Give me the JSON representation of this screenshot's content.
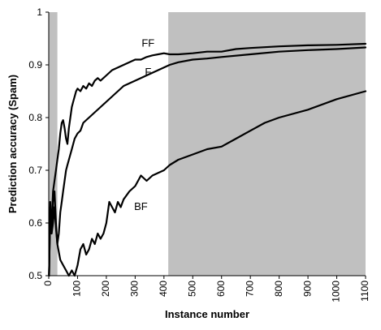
{
  "chart_data": {
    "type": "line",
    "xlabel": "Instance number",
    "ylabel": "Prediction accuracy (Spam)",
    "xlim": [
      0,
      1100
    ],
    "ylim": [
      0.5,
      1
    ],
    "x_ticks": [
      0,
      100,
      200,
      300,
      400,
      500,
      600,
      700,
      800,
      900,
      1000,
      1100
    ],
    "y_ticks": [
      0.5,
      0.6,
      0.7,
      0.8,
      0.9,
      1
    ],
    "y_tick_labels": [
      "0.5",
      "0.6",
      "0.7",
      "0.8",
      "0.9",
      "1"
    ],
    "grid": false,
    "legend": "none",
    "shaded_regions": [
      {
        "x_start": 0,
        "x_end": 30,
        "color": "#c0c0c0"
      },
      {
        "x_start": 415,
        "x_end": 1100,
        "color": "#c0c0c0"
      }
    ],
    "series": [
      {
        "name": "FF",
        "color": "#000000",
        "label_at": [
          345,
          0.935
        ],
        "x": [
          1,
          5,
          10,
          15,
          20,
          25,
          30,
          35,
          40,
          45,
          50,
          55,
          60,
          65,
          70,
          75,
          80,
          85,
          90,
          95,
          100,
          110,
          120,
          130,
          140,
          150,
          160,
          170,
          180,
          200,
          220,
          240,
          260,
          280,
          300,
          320,
          340,
          360,
          380,
          400,
          420,
          450,
          500,
          550,
          600,
          650,
          700,
          800,
          900,
          1000,
          1100
        ],
        "y": [
          0.5,
          0.63,
          0.6,
          0.66,
          0.68,
          0.7,
          0.72,
          0.74,
          0.77,
          0.79,
          0.795,
          0.78,
          0.76,
          0.75,
          0.78,
          0.8,
          0.82,
          0.83,
          0.84,
          0.85,
          0.855,
          0.85,
          0.86,
          0.855,
          0.865,
          0.86,
          0.87,
          0.875,
          0.87,
          0.88,
          0.89,
          0.895,
          0.9,
          0.905,
          0.91,
          0.91,
          0.915,
          0.918,
          0.92,
          0.922,
          0.92,
          0.92,
          0.922,
          0.925,
          0.925,
          0.93,
          0.932,
          0.935,
          0.937,
          0.938,
          0.94
        ]
      },
      {
        "name": "F",
        "color": "#000000",
        "label_at": [
          345,
          0.88
        ],
        "x": [
          1,
          5,
          10,
          15,
          20,
          25,
          30,
          35,
          40,
          45,
          50,
          55,
          60,
          65,
          70,
          80,
          90,
          100,
          110,
          120,
          140,
          160,
          180,
          200,
          220,
          240,
          260,
          280,
          300,
          320,
          340,
          360,
          380,
          400,
          420,
          450,
          500,
          550,
          600,
          700,
          800,
          900,
          1000,
          1100
        ],
        "y": [
          0.5,
          0.62,
          0.58,
          0.64,
          0.66,
          0.6,
          0.56,
          0.58,
          0.62,
          0.64,
          0.66,
          0.68,
          0.7,
          0.71,
          0.72,
          0.74,
          0.76,
          0.77,
          0.775,
          0.79,
          0.8,
          0.81,
          0.82,
          0.83,
          0.84,
          0.85,
          0.86,
          0.865,
          0.87,
          0.875,
          0.88,
          0.885,
          0.89,
          0.895,
          0.9,
          0.905,
          0.91,
          0.912,
          0.915,
          0.92,
          0.925,
          0.928,
          0.93,
          0.933
        ]
      },
      {
        "name": "BF",
        "color": "#000000",
        "label_at": [
          320,
          0.625
        ],
        "x": [
          1,
          5,
          10,
          15,
          20,
          25,
          30,
          40,
          50,
          60,
          70,
          80,
          90,
          100,
          110,
          120,
          130,
          140,
          150,
          160,
          170,
          180,
          190,
          200,
          210,
          220,
          230,
          240,
          250,
          260,
          280,
          300,
          320,
          340,
          360,
          380,
          400,
          420,
          450,
          500,
          550,
          600,
          650,
          700,
          750,
          800,
          900,
          1000,
          1100
        ],
        "y": [
          0.5,
          0.64,
          0.58,
          0.6,
          0.63,
          0.59,
          0.56,
          0.53,
          0.52,
          0.51,
          0.5,
          0.51,
          0.5,
          0.52,
          0.55,
          0.56,
          0.54,
          0.55,
          0.57,
          0.56,
          0.58,
          0.57,
          0.58,
          0.6,
          0.64,
          0.63,
          0.62,
          0.64,
          0.63,
          0.645,
          0.66,
          0.67,
          0.69,
          0.68,
          0.69,
          0.695,
          0.7,
          0.71,
          0.72,
          0.73,
          0.74,
          0.745,
          0.76,
          0.775,
          0.79,
          0.8,
          0.815,
          0.835,
          0.85
        ]
      }
    ]
  }
}
